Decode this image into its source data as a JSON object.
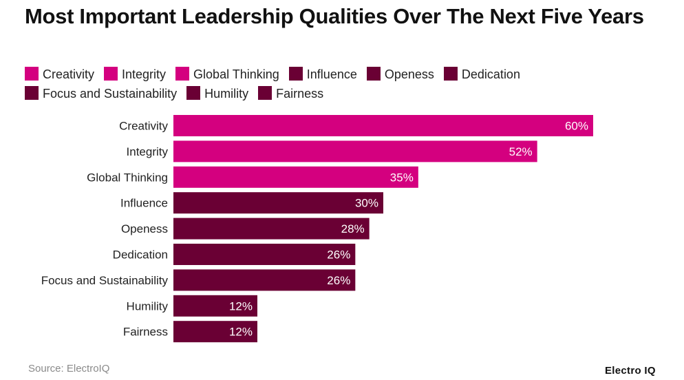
{
  "title": "Most Important Leadership Qualities Over The Next Five Years",
  "source": "Source: ElectroIQ",
  "brand": "Electro IQ",
  "colors": {
    "pink": "#d4007f",
    "maroon": "#6a0034"
  },
  "legend": [
    {
      "label": "Creativity",
      "color": "#d4007f"
    },
    {
      "label": "Integrity",
      "color": "#d4007f"
    },
    {
      "label": "Global Thinking",
      "color": "#d4007f"
    },
    {
      "label": "Influence",
      "color": "#6a0034"
    },
    {
      "label": "Openess",
      "color": "#6a0034"
    },
    {
      "label": "Dedication",
      "color": "#6a0034"
    },
    {
      "label": "Focus and Sustainability",
      "color": "#6a0034"
    },
    {
      "label": "Humility",
      "color": "#6a0034"
    },
    {
      "label": "Fairness",
      "color": "#6a0034"
    }
  ],
  "chart_data": {
    "type": "bar",
    "orientation": "horizontal",
    "categories": [
      "Creativity",
      "Integrity",
      "Global Thinking",
      "Influence",
      "Openess",
      "Dedication",
      "Focus and Sustainability",
      "Humility",
      "Fairness"
    ],
    "values": [
      60,
      52,
      35,
      30,
      28,
      26,
      26,
      12,
      12
    ],
    "value_labels": [
      "60%",
      "52%",
      "35%",
      "30%",
      "28%",
      "26%",
      "26%",
      "12%",
      "12%"
    ],
    "colors": [
      "#d4007f",
      "#d4007f",
      "#d4007f",
      "#6a0034",
      "#6a0034",
      "#6a0034",
      "#6a0034",
      "#6a0034",
      "#6a0034"
    ],
    "xlim": [
      0,
      60
    ],
    "grid": false
  }
}
